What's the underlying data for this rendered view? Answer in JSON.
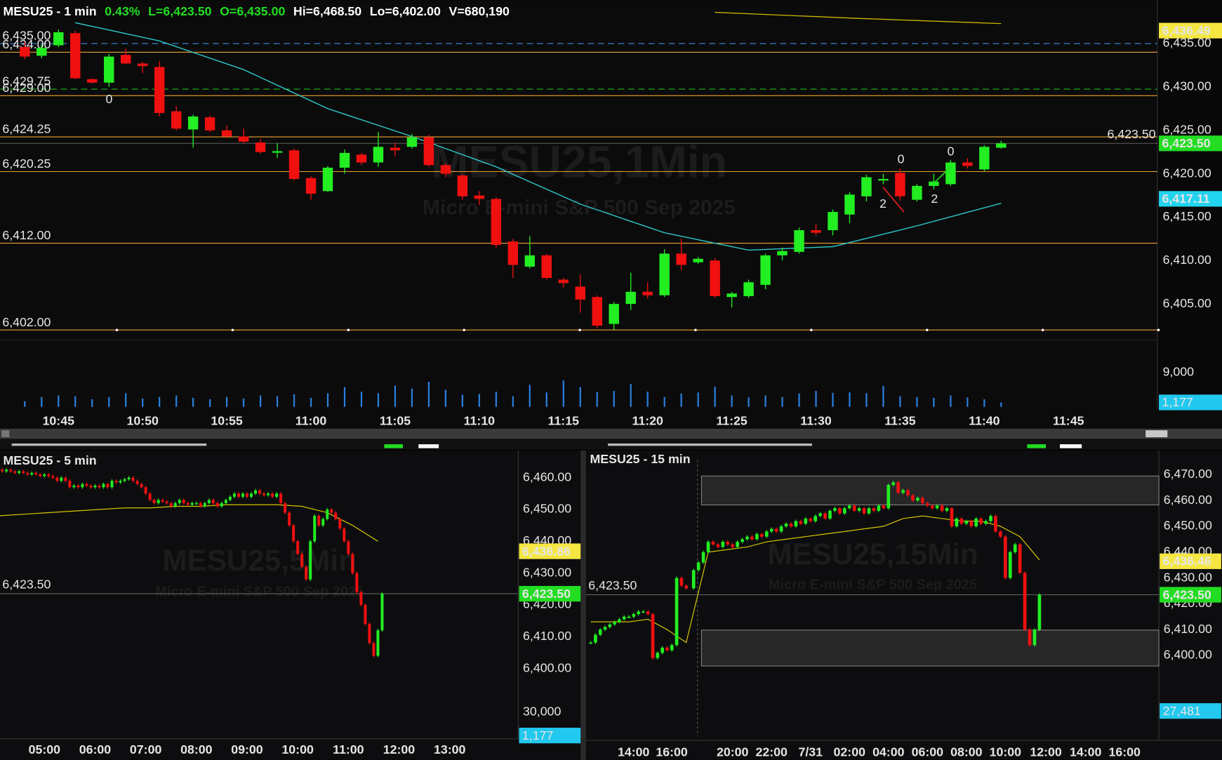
{
  "top": {
    "header": {
      "symbol": "MESU25 - 1 min",
      "change": "0.43%",
      "last": "L=6,423.50",
      "open": "O=6,435.00",
      "high": "Hi=6,468.50",
      "low": "Lo=6,402.00",
      "volume": "V=680,190"
    },
    "watermark": "MESU25,1Min",
    "subtitle": "Micro E-mini S&P 500 Sep 2025",
    "ylim": [
      6401.4,
      6440
    ],
    "yticks": [
      {
        "value": 6435,
        "label": "6,435.00"
      },
      {
        "value": 6430,
        "label": "6,430.00"
      },
      {
        "value": 6425,
        "label": "6,425.00"
      },
      {
        "value": 6420,
        "label": "6,420.00"
      },
      {
        "value": 6415,
        "label": "6,415.00"
      },
      {
        "value": 6410,
        "label": "6,410.00"
      },
      {
        "value": 6405,
        "label": "6,405.00"
      }
    ],
    "levels": [
      {
        "value": 6435,
        "label": "6,435.00",
        "color": "#3b8ee8",
        "dashed": true
      },
      {
        "value": 6434,
        "label": "6,434.00",
        "color": "#f0a030",
        "dashed": false
      },
      {
        "value": 6429.75,
        "label": "6,429.75",
        "color": "#22cc22",
        "dashed": true
      },
      {
        "value": 6429,
        "label": "6,429.00",
        "color": "#f0a030",
        "dashed": false
      },
      {
        "value": 6424.25,
        "label": "6,424.25",
        "color": "#f0a030",
        "dashed": false
      },
      {
        "value": 6420.25,
        "label": "6,420.25",
        "color": "#f0a030",
        "dashed": false
      },
      {
        "value": 6412,
        "label": "6,412.00",
        "color": "#f0a030",
        "dashed": false
      },
      {
        "value": 6402,
        "label": "6,402.00",
        "color": "#f0a030",
        "dashed": false
      }
    ],
    "tags": [
      {
        "value": 6436.49,
        "label": "6,436.49",
        "color": "#f5e642"
      },
      {
        "value": 6423.5,
        "label": "6,423.50",
        "color": "#22dd22"
      },
      {
        "value": 6417.11,
        "label": "6,417.11",
        "color": "#22d3ee"
      }
    ],
    "last_price": {
      "value": 6423.5,
      "label": "6,423.50"
    },
    "candles": {
      "open": [
        6434.6,
        6433.6,
        6434.8,
        6436.2,
        6430.9,
        6430.5,
        6433.7,
        6432.7,
        6432.3,
        6427.2,
        6425.1,
        6426.5,
        6425.0,
        6424.3,
        6423.6,
        6422.5,
        6422.7,
        6419.5,
        6418.0,
        6420.7,
        6422.2,
        6421.3,
        6423.0,
        6423.1,
        6424.2,
        6421.0,
        6419.8,
        6417.5,
        6417.1,
        6412.2,
        6409.3,
        6410.6,
        6407.8,
        6407.0,
        6405.8,
        6402.7,
        6405.0,
        6406.4,
        6406.0,
        6410.8,
        6409.8,
        6410.0,
        6405.8,
        6405.9,
        6407.2,
        6410.6,
        6411.0,
        6413.5,
        6413.5,
        6415.3,
        6417.4,
        6419.3,
        6420.1,
        6417.0,
        6418.6,
        6418.8,
        6421.3,
        6420.5,
        6423.0
      ],
      "high": [
        6435.2,
        6434.9,
        6436.6,
        6436.5,
        6431.0,
        6433.8,
        6434.4,
        6432.9,
        6433.0,
        6427.8,
        6426.8,
        6426.7,
        6425.6,
        6425.2,
        6424.0,
        6423.5,
        6422.9,
        6419.7,
        6420.9,
        6422.8,
        6422.4,
        6424.8,
        6423.6,
        6424.6,
        6424.5,
        6421.2,
        6420.0,
        6418.0,
        6417.3,
        6412.5,
        6412.8,
        6410.8,
        6408.0,
        6408.4,
        6406.0,
        6405.2,
        6408.6,
        6407.5,
        6411.3,
        6412.5,
        6410.4,
        6410.3,
        6406.4,
        6407.8,
        6410.8,
        6411.5,
        6413.8,
        6414.2,
        6415.9,
        6417.9,
        6419.9,
        6420.0,
        6420.6,
        6418.8,
        6420.0,
        6421.6,
        6421.8,
        6423.3,
        6423.8
      ],
      "low": [
        6433.2,
        6433.3,
        6434.6,
        6430.9,
        6430.4,
        6430.0,
        6432.6,
        6431.6,
        6426.6,
        6425.0,
        6423.0,
        6424.8,
        6424.1,
        6423.5,
        6422.3,
        6421.8,
        6419.2,
        6417.0,
        6417.9,
        6420.0,
        6421.0,
        6420.8,
        6422.0,
        6422.9,
        6420.8,
        6419.6,
        6417.0,
        6416.4,
        6411.5,
        6408.0,
        6409.1,
        6407.8,
        6406.9,
        6404.0,
        6402.2,
        6402.0,
        6404.3,
        6405.6,
        6405.8,
        6408.9,
        6409.6,
        6405.7,
        6404.6,
        6405.7,
        6406.7,
        6410.0,
        6410.8,
        6412.9,
        6412.9,
        6414.3,
        6416.8,
        6418.8,
        6416.9,
        6416.8,
        6418.2,
        6418.6,
        6420.6,
        6420.3,
        6422.9
      ],
      "close": [
        6433.5,
        6434.5,
        6436.3,
        6431.0,
        6430.5,
        6433.5,
        6432.7,
        6432.4,
        6427.0,
        6425.2,
        6426.6,
        6425.0,
        6424.3,
        6423.7,
        6422.5,
        6422.6,
        6419.4,
        6417.7,
        6420.7,
        6422.4,
        6421.3,
        6423.1,
        6422.7,
        6424.2,
        6421.0,
        6420.0,
        6417.4,
        6417.1,
        6411.8,
        6409.5,
        6410.6,
        6408.0,
        6407.4,
        6405.5,
        6402.5,
        6405.0,
        6406.4,
        6406.0,
        6410.8,
        6409.5,
        6410.2,
        6405.9,
        6406.2,
        6407.5,
        6410.6,
        6411.1,
        6413.5,
        6413.2,
        6415.6,
        6417.6,
        6419.6,
        6419.4,
        6417.4,
        6418.6,
        6419.1,
        6421.3,
        6420.9,
        6423.1,
        6423.5
      ]
    },
    "ma": [
      6437.4,
      6435.3,
      6432.0,
      6427.5,
      6424.3,
      6420.8,
      6416.5,
      6413.2,
      6411.2,
      6411.6,
      6414.0,
      6416.6
    ],
    "ma_slow": [
      6438.6,
      6437.9,
      6437.3
    ],
    "volume": [
      1500,
      2600,
      3000,
      2800,
      2000,
      2600,
      3600,
      2200,
      2600,
      3000,
      2400,
      2000,
      2600,
      2200,
      3000,
      2800,
      3300,
      2400,
      3600,
      5200,
      4000,
      3600,
      5600,
      4800,
      6600,
      4500,
      3200,
      3400,
      4000,
      2800,
      5800,
      3800,
      7000,
      5200,
      3900,
      4200,
      6000,
      4000,
      2600,
      3500,
      3800,
      5300,
      3000,
      2500,
      3000,
      2600,
      3500,
      4200,
      3700,
      3800,
      3600,
      5500,
      2800,
      2600,
      2400,
      3000,
      2500,
      2000,
      1177
    ],
    "vlim": [
      0,
      16800
    ],
    "vticks": [
      {
        "value": 9000,
        "label": "9,000"
      }
    ],
    "vtag": {
      "value": 1177,
      "label": "1,177"
    },
    "times": [
      "10:45",
      "10:50",
      "10:55",
      "11:00",
      "11:05",
      "11:10",
      "11:15",
      "11:20",
      "11:25",
      "11:30",
      "11:35",
      "11:40",
      "11:45"
    ],
    "annotations": [
      "0",
      "0",
      "2",
      "2",
      "0"
    ]
  },
  "five": {
    "title": "MESU25 - 5 min",
    "watermark": "MESU25,5Min",
    "subtitle": "Micro E-mini S&P 500 Sep 2025",
    "ylim": [
      6397,
      6465.6
    ],
    "yticks": [
      {
        "value": 6460,
        "label": "6,460.00"
      },
      {
        "value": 6450,
        "label": "6,450.00"
      },
      {
        "value": 6440,
        "label": "6,440.00"
      },
      {
        "value": 6430,
        "label": "6,430.00"
      },
      {
        "value": 6420,
        "label": "6,420.00"
      },
      {
        "value": 6410,
        "label": "6,410.00"
      },
      {
        "value": 6400,
        "label": "6,400.00"
      }
    ],
    "tags": [
      {
        "value": 6436.86,
        "label": "6,436.86",
        "color": "#f5e642"
      },
      {
        "value": 6423.5,
        "label": "6,423.50",
        "color": "#22dd22"
      }
    ],
    "last_price": {
      "value": 6423.5,
      "label": "6,423.50"
    },
    "closes": [
      6462.5,
      6462,
      6462.5,
      6462,
      6461.5,
      6462,
      6461.5,
      6461,
      6461.5,
      6461,
      6460.5,
      6461,
      6460.5,
      6460,
      6459,
      6460,
      6459,
      6457,
      6457.5,
      6457,
      6458,
      6457.5,
      6457,
      6457.5,
      6457,
      6458,
      6457,
      6459,
      6458.5,
      6459,
      6459.5,
      6460,
      6459,
      6458,
      6457,
      6455,
      6453,
      6452,
      6453,
      6452.5,
      6452,
      6451,
      6452,
      6453,
      6452,
      6451.5,
      6452,
      6452,
      6451,
      6452,
      6453,
      6452,
      6451,
      6452,
      6453,
      6454,
      6455,
      6454,
      6455,
      6454,
      6455,
      6456,
      6455,
      6454.5,
      6455,
      6454,
      6455,
      6452,
      6449,
      6445,
      6440,
      6436,
      6432,
      6428,
      6440,
      6448,
      6445,
      6447,
      6450,
      6449,
      6447,
      6444,
      6440,
      6436,
      6430,
      6424,
      6420,
      6414,
      6408,
      6404,
      6412,
      6423.5
    ],
    "ma": [
      6448,
      6448.5,
      6449,
      6449.5,
      6450,
      6450.5,
      6450.5,
      6451,
      6451,
      6451.5,
      6451.5,
      6451.5,
      6451,
      6449,
      6445,
      6440
    ],
    "vlim": [
      0,
      48400
    ],
    "vticks": [
      {
        "value": 30000,
        "label": "30,000"
      }
    ],
    "vtag": {
      "value": 1177,
      "label": "1,177"
    },
    "times": [
      "05:00",
      "06:00",
      "07:00",
      "08:00",
      "09:00",
      "10:00",
      "11:00",
      "12:00",
      "13:00"
    ]
  },
  "fifteen": {
    "title": "MESU25 - 15 min",
    "watermark": "MESU25,15Min",
    "subtitle": "Micro E-mini S&P 500 Sep 2025",
    "ylim": [
      6391.24,
      6475.73
    ],
    "yticks": [
      {
        "value": 6470,
        "label": "6,470.00"
      },
      {
        "value": 6460,
        "label": "6,460.00"
      },
      {
        "value": 6450,
        "label": "6,450.00"
      },
      {
        "value": 6440,
        "label": "6,440.00"
      },
      {
        "value": 6430,
        "label": "6,430.00"
      },
      {
        "value": 6420,
        "label": "6,420.00"
      },
      {
        "value": 6410,
        "label": "6,410.00"
      },
      {
        "value": 6400,
        "label": "6,400.00"
      }
    ],
    "tags": [
      {
        "value": 6436.46,
        "label": "6,436.46",
        "color": "#f5e642"
      },
      {
        "value": 6423.5,
        "label": "6,423.50",
        "color": "#22dd22"
      }
    ],
    "last_price": {
      "value": 6423.5,
      "label": "6,423.50"
    },
    "zones": [
      [
        6458.3,
        6469.5
      ],
      [
        6395.9,
        6409.8
      ]
    ],
    "closes": [
      6405,
      6408,
      6410,
      6411,
      6412,
      6413,
      6414,
      6415,
      6415,
      6416,
      6417,
      6417,
      6416,
      6399,
      6401,
      6403,
      6402,
      6404,
      6430,
      6427,
      6426,
      6433,
      6436,
      6440,
      6444,
      6443,
      6442,
      6444,
      6443,
      6442,
      6444,
      6445,
      6446,
      6445,
      6447,
      6446,
      6448,
      6449,
      6448,
      6450,
      6451,
      6450,
      6452,
      6451,
      6453,
      6452,
      6454,
      6455,
      6453,
      6456,
      6457,
      6455,
      6457,
      6458,
      6456,
      6457,
      6455,
      6457,
      6456,
      6458,
      6457,
      6466,
      6467,
      6463,
      6464,
      6462,
      6460,
      6461,
      6459,
      6458,
      6457,
      6458,
      6456,
      6457,
      6450,
      6453,
      6451,
      6452,
      6450,
      6453,
      6451,
      6452,
      6454,
      6448,
      6446,
      6430,
      6440,
      6443,
      6432,
      6410,
      6404,
      6410,
      6423.5
    ],
    "ma": [
      6413,
      6413,
      6413,
      6414,
      6410,
      6405,
      6440,
      6441,
      6442,
      6444,
      6445,
      6446,
      6447,
      6448,
      6449,
      6450,
      6453,
      6454,
      6453,
      6452,
      6452,
      6450,
      6446,
      6437
    ],
    "vlim": [
      0,
      54600
    ],
    "vtag": {
      "value": 27481,
      "label": "27,481"
    },
    "times": [
      "14:00",
      "16:00",
      "20:00",
      "22:00",
      "7/31",
      "02:00",
      "04:00",
      "06:00",
      "08:00",
      "10:00",
      "12:00",
      "14:00",
      "16:00"
    ]
  }
}
